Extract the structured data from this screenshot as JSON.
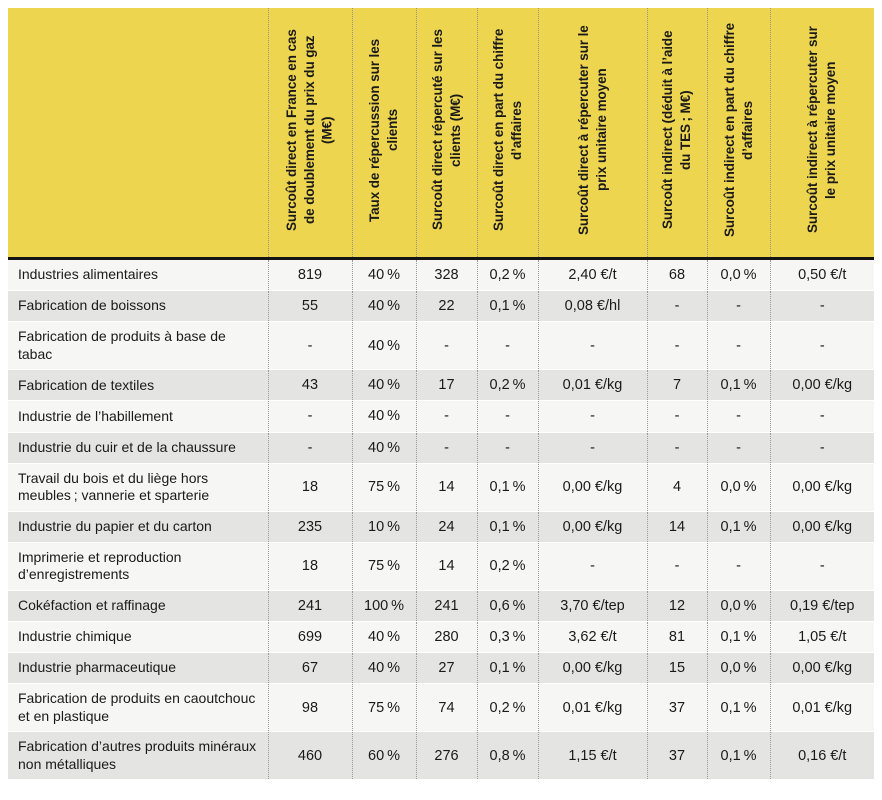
{
  "table": {
    "columns": [
      "",
      "Surcoût direct en France en cas de doublement du prix du gaz (M€)",
      "Taux de répercussion sur les clients",
      "Surcoût direct répercuté sur les clients (M€)",
      "Surcoût direct en part du chiffre d’affaires",
      "Surcoût direct à répercuter sur le prix unitaire moyen",
      "Surcoût indirect (déduit à l’aide du TES ; M€)",
      "Surcoût indirect en part du chiffre d’affaires",
      "Surcoût indirect à répercuter sur le prix unitaire moyen"
    ],
    "rows": [
      {
        "label": "Industries alimentaires",
        "values": [
          "819",
          "40 %",
          "328",
          "0,2 %",
          "2,40 €/t",
          "68",
          "0,0 %",
          "0,50 €/t"
        ]
      },
      {
        "label": "Fabrication de boissons",
        "values": [
          "55",
          "40 %",
          "22",
          "0,1 %",
          "0,08 €/hl",
          "-",
          "-",
          "-"
        ]
      },
      {
        "label": "Fabrication de produits à base de tabac",
        "values": [
          "-",
          "40 %",
          "-",
          "-",
          "-",
          "-",
          "-",
          "-"
        ]
      },
      {
        "label": "Fabrication de textiles",
        "values": [
          "43",
          "40 %",
          "17",
          "0,2 %",
          "0,01 €/kg",
          "7",
          "0,1 %",
          "0,00 €/kg"
        ]
      },
      {
        "label": "Industrie de l’habillement",
        "values": [
          "-",
          "40 %",
          "-",
          "-",
          "-",
          "-",
          "-",
          "-"
        ]
      },
      {
        "label": "Industrie du cuir et de la chaussure",
        "values": [
          "-",
          "40 %",
          "-",
          "-",
          "-",
          "-",
          "-",
          "-"
        ]
      },
      {
        "label": "Travail du bois et du liège hors meubles ; vannerie et sparterie",
        "values": [
          "18",
          "75 %",
          "14",
          "0,1 %",
          "0,00 €/kg",
          "4",
          "0,0 %",
          "0,00 €/kg"
        ]
      },
      {
        "label": "Industrie du papier et du carton",
        "values": [
          "235",
          "10 %",
          "24",
          "0,1 %",
          "0,00 €/kg",
          "14",
          "0,1 %",
          "0,00 €/kg"
        ]
      },
      {
        "label": "Imprimerie et reproduction d’enregistrements",
        "values": [
          "18",
          "75 %",
          "14",
          "0,2 %",
          "-",
          "-",
          "-",
          "-"
        ]
      },
      {
        "label": "Cokéfaction et raffinage",
        "values": [
          "241",
          "100 %",
          "241",
          "0,6 %",
          "3,70 €/tep",
          "12",
          "0,0 %",
          "0,19 €/tep"
        ]
      },
      {
        "label": "Industrie chimique",
        "values": [
          "699",
          "40 %",
          "280",
          "0,3 %",
          "3,62 €/t",
          "81",
          "0,1 %",
          "1,05 €/t"
        ]
      },
      {
        "label": "Industrie pharmaceutique",
        "values": [
          "67",
          "40 %",
          "27",
          "0,1 %",
          "0,00 €/kg",
          "15",
          "0,0 %",
          "0,00 €/kg"
        ]
      },
      {
        "label": "Fabrication de produits en caoutchouc et en plastique",
        "values": [
          "98",
          "75 %",
          "74",
          "0,2 %",
          "0,01 €/kg",
          "37",
          "0,1 %",
          "0,01 €/kg"
        ]
      },
      {
        "label": "Fabrication d’autres produits minéraux non métalliques",
        "values": [
          "460",
          "60 %",
          "276",
          "0,8 %",
          "1,15 €/t",
          "37",
          "0,1 %",
          "0,16 €/t"
        ]
      }
    ]
  },
  "colors": {
    "header_bg": "#eed54f",
    "row_light": "#f6f6f5",
    "row_dark": "#e4e4e3",
    "header_rule": "#141414",
    "column_separator_dotted": "#9a9a9a",
    "text": "#1a1a1a"
  }
}
